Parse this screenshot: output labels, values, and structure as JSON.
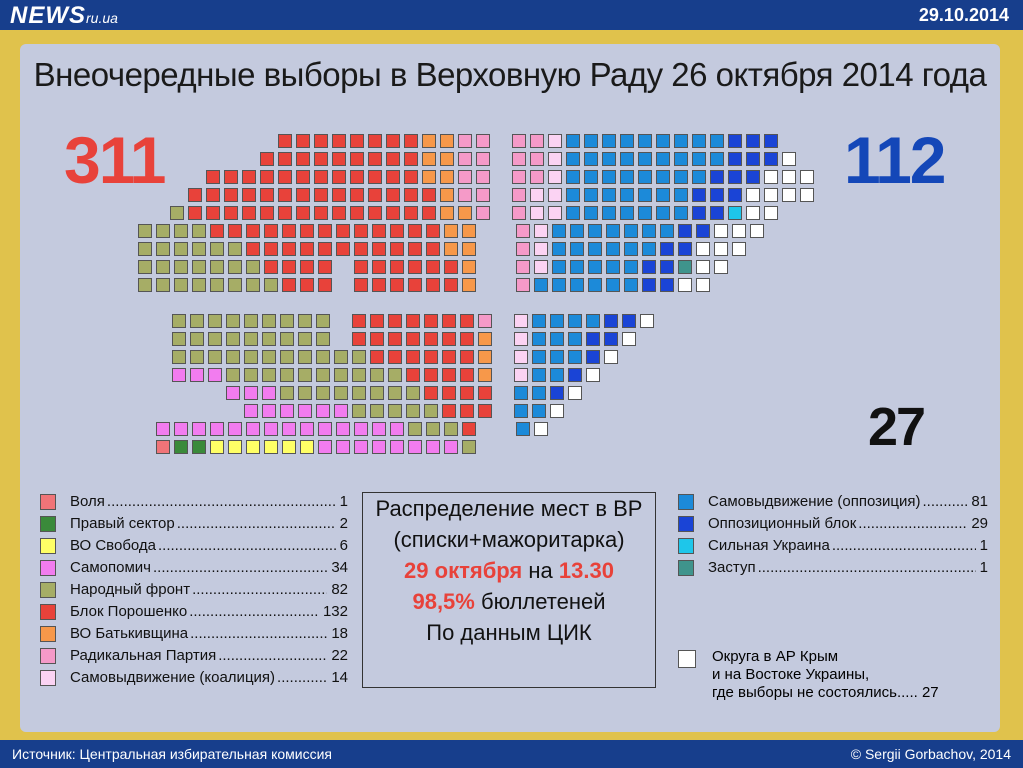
{
  "header": {
    "logo_main": "NEWS",
    "logo_sub": "ru.ua",
    "date": "29.10.2014"
  },
  "title": "Внеочередные выборы в Верховную Раду 26 октября 2014 года",
  "totals": {
    "coalition": "311",
    "opposition": "112",
    "vacant": "27"
  },
  "center_box": {
    "line1": "Распределение мест в ВР",
    "line2": "(списки+мажоритарка)",
    "date_red": "29 октября",
    "date_mid": " на ",
    "time_red": "13.30",
    "pct_red": "98,5%",
    "pct_rest": " бюллетеней",
    "line5": "По данным ЦИК"
  },
  "note": {
    "line1": "Округа в АР Крым",
    "line2": "и на Востоке Украины,",
    "line3": "где выборы не состоялись.....",
    "value": "27"
  },
  "footer": {
    "source": "Источник:  Центральная избирательная комиссия",
    "copyright": "© Sergii Gorbachov, 2014"
  },
  "chart_data": {
    "type": "parliament",
    "title": "Внеочередные выборы в Верховную Раду 26 октября 2014 года",
    "total_seats": 450,
    "series": [
      {
        "name": "Воля",
        "seats": 1,
        "color": "#f07478",
        "group": "coalition"
      },
      {
        "name": "Правый сектор",
        "seats": 2,
        "color": "#3a8a3a",
        "group": "coalition"
      },
      {
        "name": "ВО Свобода",
        "seats": 6,
        "color": "#ffff66",
        "group": "coalition"
      },
      {
        "name": "Самопомич",
        "seats": 34,
        "color": "#f27cef",
        "group": "coalition"
      },
      {
        "name": "Народный фронт",
        "seats": 82,
        "color": "#a6ad66",
        "group": "coalition"
      },
      {
        "name": "Блок Порошенко",
        "seats": 132,
        "color": "#e8423a",
        "group": "coalition"
      },
      {
        "name": "ВО Батькивщина",
        "seats": 18,
        "color": "#f7984a",
        "group": "coalition"
      },
      {
        "name": "Радикальная Партия",
        "seats": 22,
        "color": "#f59ac8",
        "group": "coalition"
      },
      {
        "name": "Самовыдвижение (коалиция)",
        "seats": 14,
        "color": "#fbd3f3",
        "group": "coalition"
      },
      {
        "name": "Самовыдвижение (оппозиция)",
        "seats": 81,
        "color": "#1c8ad9",
        "group": "opposition"
      },
      {
        "name": "Оппозиционный блок",
        "seats": 29,
        "color": "#1a44d6",
        "group": "opposition"
      },
      {
        "name": "Сильная Украина",
        "seats": 1,
        "color": "#1ec6ea",
        "group": "opposition"
      },
      {
        "name": "Заступ",
        "seats": 1,
        "color": "#3f948c",
        "group": "opposition"
      },
      {
        "name": "Округа в АР Крым и на Востоке Украины, где выборы не состоялись",
        "seats": 27,
        "color": "#ffffff",
        "group": "vacant"
      }
    ]
  },
  "legend_left": [
    {
      "label": "Воля",
      "value": "1",
      "color": "#f07478"
    },
    {
      "label": "Правый сектор",
      "value": "2",
      "color": "#3a8a3a"
    },
    {
      "label": "ВО Свобода",
      "value": "6",
      "color": "#ffff66"
    },
    {
      "label": "Самопомич",
      "value": "34",
      "color": "#f27cef"
    },
    {
      "label": "Народный фронт",
      "value": "82",
      "color": "#a6ad66"
    },
    {
      "label": "Блок Порошенко",
      "value": "132",
      "color": "#e8423a"
    },
    {
      "label": "ВО Батькивщина",
      "value": "18",
      "color": "#f7984a"
    },
    {
      "label": "Радикальная Партия",
      "value": "22",
      "color": "#f59ac8"
    },
    {
      "label": "Самовыдвижение (коалиция)",
      "value": "14",
      "color": "#fbd3f3"
    }
  ],
  "legend_right": [
    {
      "label": "Самовыдвижение (оппозиция)",
      "value": "81",
      "color": "#1c8ad9"
    },
    {
      "label": "Оппозиционный блок",
      "value": "29",
      "color": "#1a44d6"
    },
    {
      "label": "Сильная Украина",
      "value": "1",
      "color": "#1ec6ea"
    },
    {
      "label": "Заступ",
      "value": "1",
      "color": "#3f948c"
    }
  ]
}
